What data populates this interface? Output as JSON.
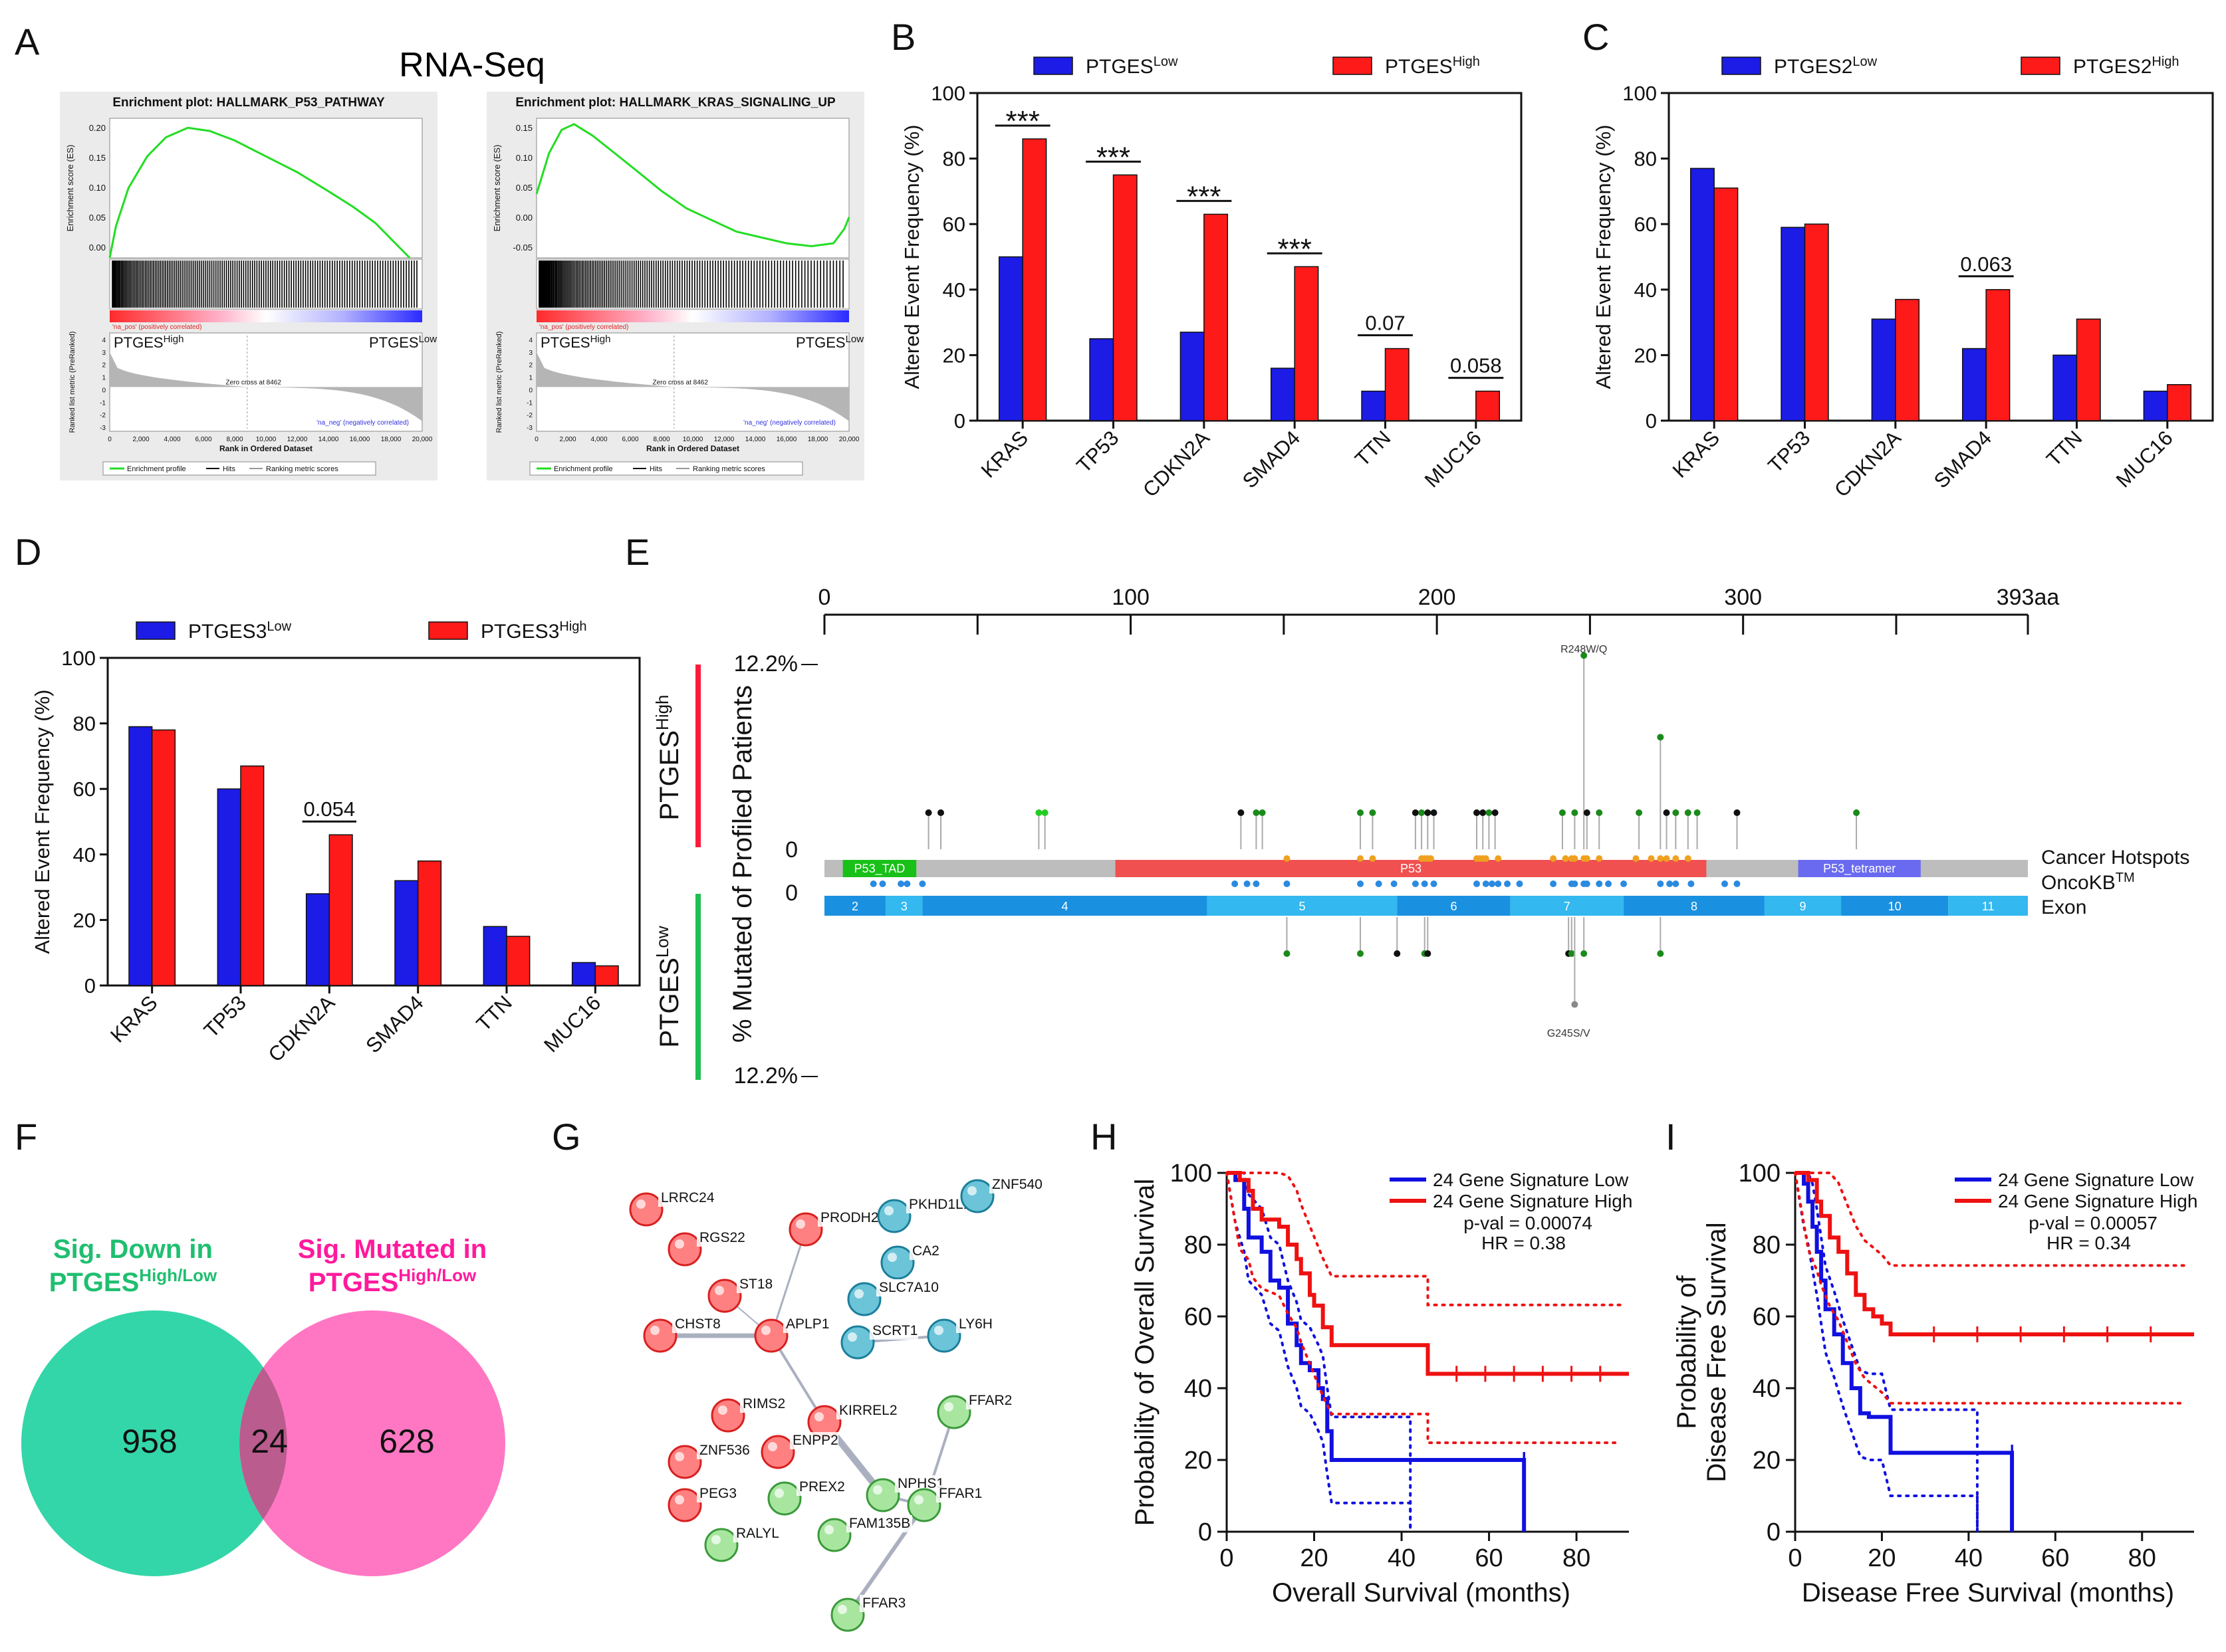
{
  "panel_labels": [
    "A",
    "B",
    "C",
    "D",
    "E",
    "F",
    "G",
    "H",
    "I"
  ],
  "panel_a": {
    "title": "RNA-Seq",
    "plots": [
      {
        "title": "Enrichment plot: HALLMARK_P53_PATHWAY",
        "yticks": [
          "0.20",
          "0.15",
          "0.10",
          "0.05",
          "0.00"
        ],
        "es_label": "Enrichment score (ES)",
        "metric_label": "Ranked list metric (PreRanked)",
        "high_label": "PTGES",
        "high_sup": "High",
        "low_label": "PTGES",
        "low_sup": "Low",
        "pos_text": "'na_pos' (positively correlated)",
        "neg_text": "'na_neg' (negatively correlated)",
        "zero_cross": "Zero cross at 8462",
        "metric_ticks": [
          "4",
          "3",
          "2",
          "1",
          "0",
          "-1",
          "-2",
          "-3"
        ],
        "xticks": [
          "0",
          "2,000",
          "4,000",
          "6,000",
          "8,000",
          "10,000",
          "12,000",
          "14,000",
          "16,000",
          "18,000",
          "20,000"
        ],
        "xlabel": "Rank in Ordered Dataset",
        "legend": [
          "Enrichment profile",
          "Hits",
          "Ranking metric scores"
        ]
      },
      {
        "title": "Enrichment plot: HALLMARK_KRAS_SIGNALING_UP",
        "yticks": [
          "0.15",
          "0.10",
          "0.05",
          "0.00",
          "-0.05"
        ],
        "es_label": "Enrichment score (ES)",
        "metric_label": "Ranked list metric (PreRanked)",
        "high_label": "PTGES",
        "high_sup": "High",
        "low_label": "PTGES",
        "low_sup": "Low",
        "pos_text": "'na_pos' (positively correlated)",
        "neg_text": "'na_neg' (negatively correlated)",
        "zero_cross": "Zero cross at 8462",
        "metric_ticks": [
          "4",
          "3",
          "2",
          "1",
          "0",
          "-1",
          "-2",
          "-3"
        ],
        "xticks": [
          "0",
          "2,000",
          "4,000",
          "6,000",
          "8,000",
          "10,000",
          "12,000",
          "14,000",
          "16,000",
          "18,000",
          "20,000"
        ],
        "xlabel": "Rank in Ordered Dataset",
        "legend": [
          "Enrichment profile",
          "Hits",
          "Ranking metric scores"
        ]
      }
    ]
  },
  "chart_data": [
    {
      "id": "B",
      "type": "bar",
      "categories": [
        "KRAS",
        "TP53",
        "CDKN2A",
        "SMAD4",
        "TTN",
        "MUC16"
      ],
      "series": [
        {
          "name": "PTGES",
          "sup": "Low",
          "color": "#1c1ce6",
          "values": [
            50,
            25,
            27,
            16,
            9,
            0
          ]
        },
        {
          "name": "PTGES",
          "sup": "High",
          "color": "#ff1a1a",
          "values": [
            86,
            75,
            63,
            47,
            22,
            9
          ]
        }
      ],
      "ylabel": "Altered Event Frequency (%)",
      "ylim": [
        0,
        100
      ],
      "yticks": [
        "0",
        "20",
        "40",
        "60",
        "80",
        "100"
      ],
      "annotations": [
        {
          "cat": 0,
          "text": "***"
        },
        {
          "cat": 1,
          "text": "***"
        },
        {
          "cat": 2,
          "text": "***"
        },
        {
          "cat": 3,
          "text": "***"
        },
        {
          "cat": 4,
          "text": "0.07"
        },
        {
          "cat": 5,
          "text": "0.058"
        }
      ]
    },
    {
      "id": "C",
      "type": "bar",
      "categories": [
        "KRAS",
        "TP53",
        "CDKN2A",
        "SMAD4",
        "TTN",
        "MUC16"
      ],
      "series": [
        {
          "name": "PTGES2",
          "sup": "Low",
          "color": "#1c1ce6",
          "values": [
            77,
            59,
            31,
            22,
            20,
            9
          ]
        },
        {
          "name": "PTGES2",
          "sup": "High",
          "color": "#ff1a1a",
          "values": [
            71,
            60,
            37,
            40,
            31,
            11
          ]
        }
      ],
      "ylabel": "Altered Event Frequency (%)",
      "ylim": [
        0,
        100
      ],
      "yticks": [
        "0",
        "20",
        "40",
        "60",
        "80",
        "100"
      ],
      "annotations": [
        {
          "cat": 3,
          "text": "0.063"
        }
      ]
    },
    {
      "id": "D",
      "type": "bar",
      "categories": [
        "KRAS",
        "TP53",
        "CDKN2A",
        "SMAD4",
        "TTN",
        "MUC16"
      ],
      "series": [
        {
          "name": "PTGES3",
          "sup": "Low",
          "color": "#1c1ce6",
          "values": [
            79,
            60,
            28,
            32,
            18,
            7
          ]
        },
        {
          "name": "PTGES3",
          "sup": "High",
          "color": "#ff1a1a",
          "values": [
            78,
            67,
            46,
            38,
            15,
            6
          ]
        }
      ],
      "ylabel": "Altered Event Frequency (%)",
      "ylim": [
        0,
        100
      ],
      "yticks": [
        "0",
        "20",
        "40",
        "60",
        "80",
        "100"
      ],
      "annotations": [
        {
          "cat": 2,
          "text": "0.054"
        }
      ]
    },
    {
      "id": "H",
      "type": "line",
      "title": "",
      "xlabel": "Overall Survival (months)",
      "ylabel": "Probability of Overall Survival",
      "xlim": [
        0,
        92
      ],
      "ylim": [
        0,
        100
      ],
      "xticks": [
        "0",
        "20",
        "40",
        "60",
        "80"
      ],
      "yticks": [
        "0",
        "20",
        "40",
        "60",
        "80",
        "100"
      ],
      "legend": [
        "24 Gene Signature Low",
        "24 Gene Signature High"
      ],
      "pval": "p-val = 0.00074",
      "hr": "HR = 0.38",
      "series": [
        {
          "name": "24 Gene Signature Low",
          "color": "#1010e0",
          "points": [
            [
              0,
              100
            ],
            [
              2,
              98
            ],
            [
              4,
              90
            ],
            [
              5,
              82
            ],
            [
              8,
              78
            ],
            [
              10,
              70
            ],
            [
              12,
              68
            ],
            [
              14,
              58
            ],
            [
              16,
              52
            ],
            [
              17,
              47
            ],
            [
              19,
              45
            ],
            [
              21,
              40
            ],
            [
              22,
              37
            ],
            [
              23,
              28
            ],
            [
              24,
              20
            ],
            [
              68,
              20
            ],
            [
              68,
              0
            ]
          ]
        },
        {
          "name": "24 Gene Signature High",
          "color": "#ee1111",
          "points": [
            [
              0,
              100
            ],
            [
              3,
              98
            ],
            [
              5,
              95
            ],
            [
              6,
              90
            ],
            [
              8,
              87
            ],
            [
              12,
              85
            ],
            [
              14,
              80
            ],
            [
              16,
              76
            ],
            [
              17,
              72
            ],
            [
              19,
              66
            ],
            [
              20,
              63
            ],
            [
              22,
              57
            ],
            [
              24,
              52
            ],
            [
              46,
              52
            ],
            [
              46,
              44
            ],
            [
              92,
              44
            ]
          ]
        }
      ]
    },
    {
      "id": "I",
      "type": "line",
      "title": "",
      "xlabel": "Disease Free Survival (months)",
      "ylabel": "Probability of Disease Free Survival",
      "xlim": [
        0,
        92
      ],
      "ylim": [
        0,
        100
      ],
      "xticks": [
        "0",
        "20",
        "40",
        "60",
        "80"
      ],
      "yticks": [
        "0",
        "20",
        "40",
        "60",
        "80",
        "100"
      ],
      "legend": [
        "24 Gene Signature Low",
        "24 Gene Signature High"
      ],
      "pval": "p-val = 0.00057",
      "hr": "HR = 0.34",
      "series": [
        {
          "name": "24 Gene Signature Low",
          "color": "#1010e0",
          "points": [
            [
              0,
              100
            ],
            [
              2,
              97
            ],
            [
              3,
              92
            ],
            [
              4,
              85
            ],
            [
              5,
              78
            ],
            [
              6,
              70
            ],
            [
              7,
              62
            ],
            [
              9,
              55
            ],
            [
              11,
              47
            ],
            [
              13,
              40
            ],
            [
              15,
              33
            ],
            [
              17,
              32
            ],
            [
              20,
              32
            ],
            [
              22,
              22
            ],
            [
              50,
              22
            ],
            [
              50,
              0
            ]
          ]
        },
        {
          "name": "24 Gene Signature High",
          "color": "#ee1111",
          "points": [
            [
              0,
              100
            ],
            [
              3,
              98
            ],
            [
              5,
              92
            ],
            [
              6,
              88
            ],
            [
              8,
              82
            ],
            [
              10,
              78
            ],
            [
              12,
              72
            ],
            [
              14,
              66
            ],
            [
              16,
              62
            ],
            [
              18,
              60
            ],
            [
              20,
              58
            ],
            [
              22,
              55
            ],
            [
              92,
              55
            ]
          ]
        }
      ]
    }
  ],
  "panel_e": {
    "axis_ticks": [
      "0",
      "100",
      "200",
      "300",
      "393aa"
    ],
    "axis_values": [
      0,
      100,
      200,
      300,
      393
    ],
    "pct_top": "12.2%",
    "zero_top": "0",
    "zero_bottom": "0",
    "pct_bottom": "12.2%",
    "ylabel": "% Mutated of Profiled Patients",
    "group_high": "PTGES",
    "group_high_sup": "High",
    "group_low": "PTGES",
    "group_low_sup": "Low",
    "track_labels": [
      "Cancer Hotspots",
      "OncoKB",
      "Exon"
    ],
    "oncokb_sup": "TM",
    "domains": [
      {
        "name": "P53_TAD",
        "start": 6,
        "end": 30,
        "color": "#18c018"
      },
      {
        "name": "P53",
        "start": 95,
        "end": 288,
        "color": "#f05050"
      },
      {
        "name": "P53_tetramer",
        "start": 318,
        "end": 358,
        "color": "#6a6af0"
      }
    ],
    "exons": [
      {
        "label": "2",
        "start": 0,
        "end": 20
      },
      {
        "label": "3",
        "start": 20,
        "end": 32
      },
      {
        "label": "4",
        "start": 32,
        "end": 125
      },
      {
        "label": "5",
        "start": 125,
        "end": 187
      },
      {
        "label": "6",
        "start": 187,
        "end": 224
      },
      {
        "label": "7",
        "start": 224,
        "end": 261
      },
      {
        "label": "8",
        "start": 261,
        "end": 307
      },
      {
        "label": "9",
        "start": 307,
        "end": 332
      },
      {
        "label": "10",
        "start": 332,
        "end": 367
      },
      {
        "label": "11",
        "start": 367,
        "end": 393
      }
    ],
    "top_annotation": "R248W/Q",
    "bottom_annotation": "G245S/V",
    "top_lollipops": [
      {
        "pos": 34,
        "h": 2,
        "c": "#111111"
      },
      {
        "pos": 38,
        "h": 2,
        "c": "#111111"
      },
      {
        "pos": 70,
        "h": 2,
        "c": "#22cc22"
      },
      {
        "pos": 72,
        "h": 2,
        "c": "#22cc22"
      },
      {
        "pos": 136,
        "h": 2,
        "c": "#111111"
      },
      {
        "pos": 141,
        "h": 2,
        "c": "#1a8a1a"
      },
      {
        "pos": 143,
        "h": 2,
        "c": "#1a8a1a"
      },
      {
        "pos": 175,
        "h": 2,
        "c": "#1a8a1a"
      },
      {
        "pos": 179,
        "h": 2,
        "c": "#1a8a1a"
      },
      {
        "pos": 193,
        "h": 2,
        "c": "#111111"
      },
      {
        "pos": 195,
        "h": 2,
        "c": "#1a8a1a"
      },
      {
        "pos": 197,
        "h": 2,
        "c": "#111111"
      },
      {
        "pos": 199,
        "h": 2,
        "c": "#111111"
      },
      {
        "pos": 213,
        "h": 2,
        "c": "#111111"
      },
      {
        "pos": 215,
        "h": 2,
        "c": "#111111"
      },
      {
        "pos": 217,
        "h": 2,
        "c": "#1a8a1a"
      },
      {
        "pos": 219,
        "h": 2,
        "c": "#111111"
      },
      {
        "pos": 241,
        "h": 2,
        "c": "#1a8a1a"
      },
      {
        "pos": 245,
        "h": 2,
        "c": "#1a8a1a"
      },
      {
        "pos": 248,
        "h": 12.2,
        "c": "#1a8a1a"
      },
      {
        "pos": 249,
        "h": 2,
        "c": "#111111"
      },
      {
        "pos": 253,
        "h": 2,
        "c": "#1a8a1a"
      },
      {
        "pos": 266,
        "h": 2,
        "c": "#1a8a1a"
      },
      {
        "pos": 273,
        "h": 6.9,
        "c": "#1a8a1a"
      },
      {
        "pos": 275,
        "h": 2,
        "c": "#111111"
      },
      {
        "pos": 278,
        "h": 2,
        "c": "#1a8a1a"
      },
      {
        "pos": 282,
        "h": 2,
        "c": "#1a8a1a"
      },
      {
        "pos": 285,
        "h": 2,
        "c": "#1a8a1a"
      },
      {
        "pos": 298,
        "h": 2,
        "c": "#111111"
      },
      {
        "pos": 337,
        "h": 2,
        "c": "#1a8a1a"
      }
    ],
    "bottom_lollipops": [
      {
        "pos": 151,
        "h": 2,
        "c": "#1a8a1a"
      },
      {
        "pos": 175,
        "h": 2,
        "c": "#1a8a1a"
      },
      {
        "pos": 187,
        "h": 2,
        "c": "#111111"
      },
      {
        "pos": 196,
        "h": 2,
        "c": "#1a8a1a"
      },
      {
        "pos": 197,
        "h": 2,
        "c": "#111111"
      },
      {
        "pos": 243,
        "h": 2,
        "c": "#111111"
      },
      {
        "pos": 244,
        "h": 2,
        "c": "#1a8a1a"
      },
      {
        "pos": 245,
        "h": 5.3,
        "c": "#888888"
      },
      {
        "pos": 248,
        "h": 2,
        "c": "#1a8a1a"
      },
      {
        "pos": 273,
        "h": 2,
        "c": "#1a8a1a"
      }
    ],
    "hotspots": [
      151,
      175,
      179,
      195,
      196,
      197,
      198,
      213,
      214,
      215,
      216,
      220,
      238,
      242,
      244,
      245,
      248,
      249,
      253,
      265,
      270,
      273,
      275,
      278,
      282
    ],
    "oncokb_dots": [
      16,
      19,
      25,
      27,
      32,
      134,
      138,
      141,
      151,
      175,
      181,
      186,
      193,
      196,
      199,
      213,
      216,
      218,
      220,
      223,
      227,
      238,
      244,
      245,
      248,
      249,
      253,
      256,
      261,
      273,
      276,
      278,
      283,
      294,
      298
    ]
  },
  "panel_f": {
    "left_title_line1": "Sig. Down in",
    "left_title_line2": "PTGES",
    "left_sup": "High",
    "left_tail": "/Low",
    "right_title_line1": "Sig. Mutated in",
    "right_title_line2": "PTGES",
    "right_sup": "High/Low",
    "left_count": "958",
    "overlap_count": "24",
    "right_count": "628",
    "left_color": "#33d6a8",
    "right_color": "#ff5fb8",
    "overlap_color": "#9a4a6c",
    "left_text_color": "#1fbf70",
    "right_text_color": "#ff1a9c"
  },
  "panel_g": {
    "nodes": [
      {
        "name": "LRRC24",
        "c": "red"
      },
      {
        "name": "RGS22",
        "c": "red"
      },
      {
        "name": "PRODH2",
        "c": "red"
      },
      {
        "name": "PKHD1L1",
        "c": "teal"
      },
      {
        "name": "ZNF540",
        "c": "teal"
      },
      {
        "name": "ST18",
        "c": "red"
      },
      {
        "name": "CA2",
        "c": "teal"
      },
      {
        "name": "SLC7A10",
        "c": "teal"
      },
      {
        "name": "CHST8",
        "c": "red"
      },
      {
        "name": "APLP1",
        "c": "red"
      },
      {
        "name": "SCRT1",
        "c": "teal"
      },
      {
        "name": "LY6H",
        "c": "teal"
      },
      {
        "name": "RIMS2",
        "c": "red"
      },
      {
        "name": "KIRREL2",
        "c": "red"
      },
      {
        "name": "FFAR2",
        "c": "green"
      },
      {
        "name": "ZNF536",
        "c": "red"
      },
      {
        "name": "ENPP2",
        "c": "red"
      },
      {
        "name": "PREX2",
        "c": "green"
      },
      {
        "name": "NPHS1",
        "c": "green"
      },
      {
        "name": "PEG3",
        "c": "red"
      },
      {
        "name": "FFAR1",
        "c": "green"
      },
      {
        "name": "RALYL",
        "c": "green"
      },
      {
        "name": "FAM135B",
        "c": "green"
      },
      {
        "name": "FFAR3",
        "c": "green"
      }
    ]
  }
}
